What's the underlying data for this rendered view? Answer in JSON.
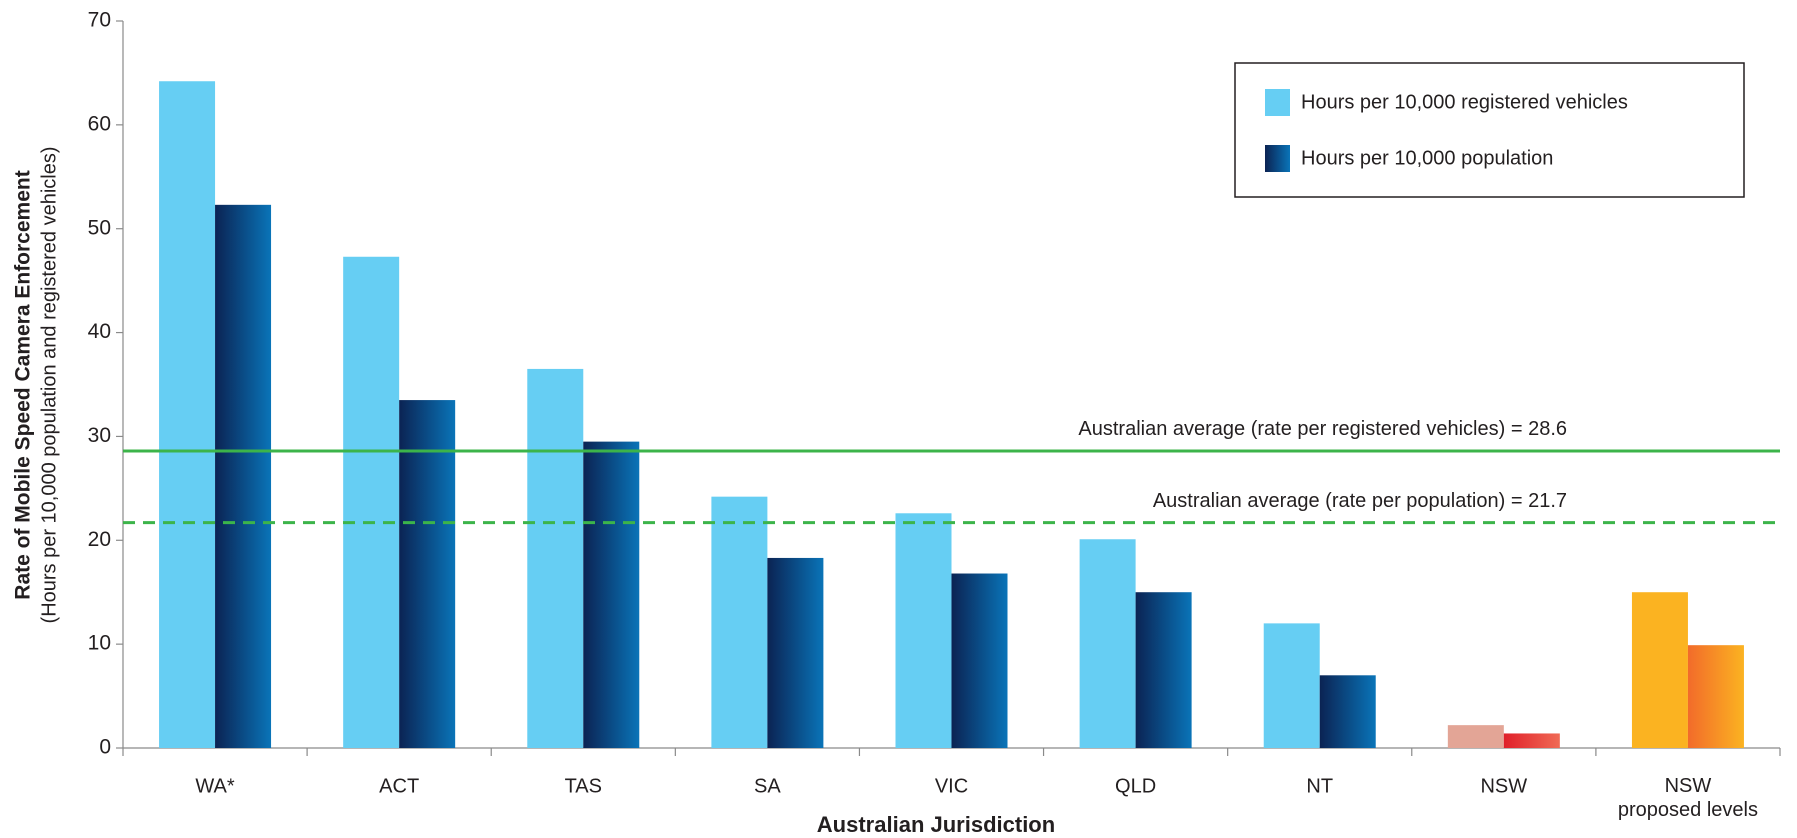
{
  "chart_data": {
    "type": "bar",
    "y_label": "Rate of Mobile Speed Camera Enforcement",
    "y_sublabel": "(Hours per 10,000 population and registered vehicles)",
    "x_label": "Australian Jurisdiction",
    "categories": [
      "WA*",
      "ACT",
      "TAS",
      "SA",
      "VIC",
      "QLD",
      "NT",
      "NSW",
      "NSW\nproposed levels"
    ],
    "series": [
      {
        "name": "Hours per 10,000 registered vehicles",
        "color": "#66cef3",
        "colors": [
          [
            "#66cef3",
            "#66cef3"
          ],
          [
            "#66cef3",
            "#66cef3"
          ],
          [
            "#66cef3",
            "#66cef3"
          ],
          [
            "#66cef3",
            "#66cef3"
          ],
          [
            "#66cef3",
            "#66cef3"
          ],
          [
            "#66cef3",
            "#66cef3"
          ],
          [
            "#66cef3",
            "#66cef3"
          ],
          [
            "#e3a596",
            "#e3a596"
          ],
          [
            "#fbb321",
            "#fbb321"
          ]
        ],
        "values": [
          64.2,
          47.3,
          36.5,
          24.2,
          22.6,
          20.1,
          12.0,
          2.2,
          15.0
        ]
      },
      {
        "name": "Hours per 10,000 population",
        "color": "#0a2a5c",
        "colors": [
          [
            "#0b2353",
            "#0a74b8"
          ],
          [
            "#0b2353",
            "#0a74b8"
          ],
          [
            "#0b2353",
            "#0a74b8"
          ],
          [
            "#0b2353",
            "#0a74b8"
          ],
          [
            "#0b2353",
            "#0a74b8"
          ],
          [
            "#0b2353",
            "#0a74b8"
          ],
          [
            "#0b2353",
            "#0a74b8"
          ],
          [
            "#e0202a",
            "#f06a55"
          ],
          [
            "#f26b2a",
            "#fbb321"
          ]
        ],
        "values": [
          52.3,
          33.5,
          29.5,
          18.3,
          16.8,
          15.0,
          7.0,
          1.4,
          9.9
        ]
      }
    ],
    "reference_lines": [
      {
        "value": 28.6,
        "label": "Australian average (rate per registered vehicles) = 28.6",
        "style": "solid",
        "color": "#3cb44a"
      },
      {
        "value": 21.7,
        "label": "Australian average (rate per population) = 21.7",
        "style": "dashed",
        "color": "#3cb44a"
      }
    ],
    "ylim": [
      0,
      70
    ],
    "yticks": [
      0,
      10,
      20,
      30,
      40,
      50,
      60,
      70
    ],
    "legend": "top-right"
  }
}
